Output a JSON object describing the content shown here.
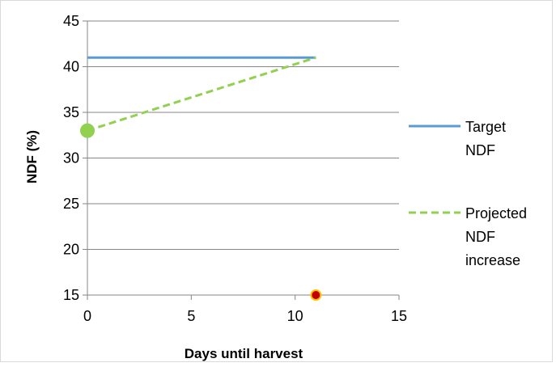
{
  "chart_data": {
    "type": "line",
    "title": "",
    "xlabel": "Days until harvest",
    "ylabel": "NDF (%)",
    "xlim": [
      0,
      15
    ],
    "ylim": [
      15,
      45
    ],
    "x_ticks": [
      0,
      5,
      10,
      15
    ],
    "y_ticks": [
      15,
      20,
      25,
      30,
      35,
      40,
      45
    ],
    "grid": "horizontal",
    "legend_position": "right",
    "series": [
      {
        "name": "Target NDF",
        "legend_lines": [
          "Target",
          "NDF"
        ],
        "style": "solid",
        "color": "#5b9bd5",
        "x": [
          0,
          11
        ],
        "y": [
          41,
          41
        ]
      },
      {
        "name": "Projected NDF increase",
        "legend_lines": [
          "Projected",
          "NDF",
          "increase"
        ],
        "style": "dashed",
        "color": "#92d050",
        "x": [
          0,
          11
        ],
        "y": [
          33,
          41
        ]
      }
    ],
    "markers": [
      {
        "x": 0,
        "y": 33,
        "fill": "#92d050",
        "stroke": "#92d050",
        "r": 8
      },
      {
        "x": 11,
        "y": 15,
        "fill": "#c00000",
        "stroke": "#ffc000",
        "r": 6
      }
    ]
  }
}
